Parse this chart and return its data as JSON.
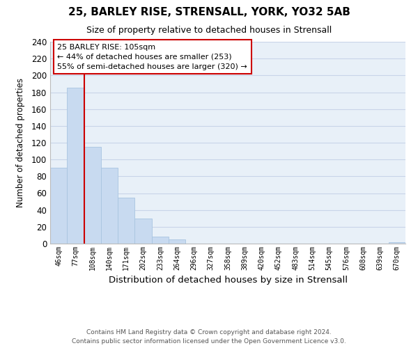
{
  "title": "25, BARLEY RISE, STRENSALL, YORK, YO32 5AB",
  "subtitle": "Size of property relative to detached houses in Strensall",
  "xlabel": "Distribution of detached houses by size in Strensall",
  "ylabel": "Number of detached properties",
  "bar_labels": [
    "46sqm",
    "77sqm",
    "108sqm",
    "140sqm",
    "171sqm",
    "202sqm",
    "233sqm",
    "264sqm",
    "296sqm",
    "327sqm",
    "358sqm",
    "389sqm",
    "420sqm",
    "452sqm",
    "483sqm",
    "514sqm",
    "545sqm",
    "576sqm",
    "608sqm",
    "639sqm",
    "670sqm"
  ],
  "bar_values": [
    90,
    185,
    115,
    90,
    55,
    30,
    8,
    5,
    0,
    0,
    0,
    0,
    0,
    0,
    0,
    0,
    0,
    0,
    0,
    0,
    2
  ],
  "bar_color": "#c8daf0",
  "bar_edge_color": "#a8c4e0",
  "vline_x_idx": 1,
  "vline_color": "#cc0000",
  "ylim": [
    0,
    240
  ],
  "yticks": [
    0,
    20,
    40,
    60,
    80,
    100,
    120,
    140,
    160,
    180,
    200,
    220,
    240
  ],
  "annotation_title": "25 BARLEY RISE: 105sqm",
  "annotation_line1": "← 44% of detached houses are smaller (253)",
  "annotation_line2": "55% of semi-detached houses are larger (320) →",
  "annotation_box_facecolor": "#ffffff",
  "annotation_box_edgecolor": "#cc0000",
  "footer_line1": "Contains HM Land Registry data © Crown copyright and database right 2024.",
  "footer_line2": "Contains public sector information licensed under the Open Government Licence v3.0.",
  "fig_facecolor": "#ffffff",
  "ax_facecolor": "#e8f0f8",
  "grid_color": "#c8d4e8"
}
